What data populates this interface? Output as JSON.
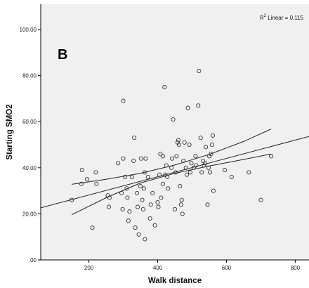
{
  "chart_data": {
    "type": "scatter",
    "panel_label": "B",
    "xlabel": "Walk distance",
    "ylabel": "Starting SMO2",
    "xlim": [
      60,
      840
    ],
    "ylim": [
      0,
      111
    ],
    "x_ticks": [
      200,
      400,
      600,
      800
    ],
    "x_tick_labels": [
      "200",
      "400",
      "600",
      "800"
    ],
    "y_ticks": [
      0,
      20,
      40,
      60,
      80,
      100
    ],
    "y_tick_labels": [
      ".00",
      "20.00",
      "40.00",
      "60.00",
      "80.00",
      "100.00"
    ],
    "annotation": {
      "prefix": "R",
      "sup": "2",
      "suffix": " Linear = 0.115"
    },
    "fit_line": {
      "x": [
        60,
        840
      ],
      "y": [
        22.6,
        53.6
      ]
    },
    "confidence_band": {
      "x": [
        150,
        250,
        350,
        450,
        550,
        650,
        730
      ],
      "upper": [
        32.8,
        35.0,
        37.6,
        41.2,
        45.8,
        51.4,
        56.8
      ],
      "lower": [
        19.6,
        27.0,
        33.4,
        37.6,
        40.8,
        43.6,
        46.0
      ]
    },
    "points": [
      {
        "x": 150,
        "y": 26
      },
      {
        "x": 178,
        "y": 33
      },
      {
        "x": 180,
        "y": 39
      },
      {
        "x": 195,
        "y": 35
      },
      {
        "x": 210,
        "y": 14
      },
      {
        "x": 220,
        "y": 38
      },
      {
        "x": 222,
        "y": 33
      },
      {
        "x": 255,
        "y": 28
      },
      {
        "x": 258,
        "y": 23
      },
      {
        "x": 260,
        "y": 27
      },
      {
        "x": 285,
        "y": 42
      },
      {
        "x": 295,
        "y": 29
      },
      {
        "x": 298,
        "y": 22
      },
      {
        "x": 300,
        "y": 69
      },
      {
        "x": 300,
        "y": 44
      },
      {
        "x": 305,
        "y": 36
      },
      {
        "x": 310,
        "y": 31
      },
      {
        "x": 312,
        "y": 27
      },
      {
        "x": 315,
        "y": 17
      },
      {
        "x": 318,
        "y": 21
      },
      {
        "x": 325,
        "y": 36
      },
      {
        "x": 330,
        "y": 43
      },
      {
        "x": 332,
        "y": 53
      },
      {
        "x": 335,
        "y": 14
      },
      {
        "x": 340,
        "y": 29
      },
      {
        "x": 342,
        "y": 23
      },
      {
        "x": 345,
        "y": 11
      },
      {
        "x": 350,
        "y": 32
      },
      {
        "x": 352,
        "y": 44
      },
      {
        "x": 355,
        "y": 26
      },
      {
        "x": 358,
        "y": 22
      },
      {
        "x": 360,
        "y": 31
      },
      {
        "x": 362,
        "y": 38
      },
      {
        "x": 363,
        "y": 9
      },
      {
        "x": 365,
        "y": 44
      },
      {
        "x": 372,
        "y": 36
      },
      {
        "x": 378,
        "y": 18
      },
      {
        "x": 380,
        "y": 24
      },
      {
        "x": 385,
        "y": 29
      },
      {
        "x": 392,
        "y": 15
      },
      {
        "x": 400,
        "y": 25
      },
      {
        "x": 402,
        "y": 23
      },
      {
        "x": 405,
        "y": 37
      },
      {
        "x": 408,
        "y": 46
      },
      {
        "x": 410,
        "y": 27
      },
      {
        "x": 415,
        "y": 33
      },
      {
        "x": 415,
        "y": 45
      },
      {
        "x": 420,
        "y": 75
      },
      {
        "x": 422,
        "y": 37
      },
      {
        "x": 425,
        "y": 41
      },
      {
        "x": 428,
        "y": 36
      },
      {
        "x": 430,
        "y": 31
      },
      {
        "x": 440,
        "y": 40
      },
      {
        "x": 442,
        "y": 44
      },
      {
        "x": 445,
        "y": 61
      },
      {
        "x": 450,
        "y": 22
      },
      {
        "x": 452,
        "y": 38
      },
      {
        "x": 455,
        "y": 45
      },
      {
        "x": 458,
        "y": 51
      },
      {
        "x": 460,
        "y": 52
      },
      {
        "x": 462,
        "y": 50
      },
      {
        "x": 465,
        "y": 32
      },
      {
        "x": 468,
        "y": 24
      },
      {
        "x": 470,
        "y": 26
      },
      {
        "x": 472,
        "y": 20
      },
      {
        "x": 475,
        "y": 43
      },
      {
        "x": 478,
        "y": 51
      },
      {
        "x": 482,
        "y": 40
      },
      {
        "x": 485,
        "y": 37
      },
      {
        "x": 488,
        "y": 66
      },
      {
        "x": 492,
        "y": 50
      },
      {
        "x": 495,
        "y": 38
      },
      {
        "x": 498,
        "y": 42
      },
      {
        "x": 505,
        "y": 40
      },
      {
        "x": 510,
        "y": 45
      },
      {
        "x": 512,
        "y": 41
      },
      {
        "x": 518,
        "y": 67
      },
      {
        "x": 520,
        "y": 82
      },
      {
        "x": 525,
        "y": 53
      },
      {
        "x": 528,
        "y": 38
      },
      {
        "x": 532,
        "y": 43
      },
      {
        "x": 535,
        "y": 41
      },
      {
        "x": 538,
        "y": 42
      },
      {
        "x": 540,
        "y": 49
      },
      {
        "x": 545,
        "y": 24
      },
      {
        "x": 548,
        "y": 40
      },
      {
        "x": 550,
        "y": 45
      },
      {
        "x": 552,
        "y": 38
      },
      {
        "x": 555,
        "y": 46
      },
      {
        "x": 558,
        "y": 50
      },
      {
        "x": 560,
        "y": 54
      },
      {
        "x": 562,
        "y": 30
      },
      {
        "x": 595,
        "y": 39
      },
      {
        "x": 615,
        "y": 36
      },
      {
        "x": 665,
        "y": 38
      },
      {
        "x": 700,
        "y": 26
      },
      {
        "x": 730,
        "y": 45
      }
    ]
  }
}
